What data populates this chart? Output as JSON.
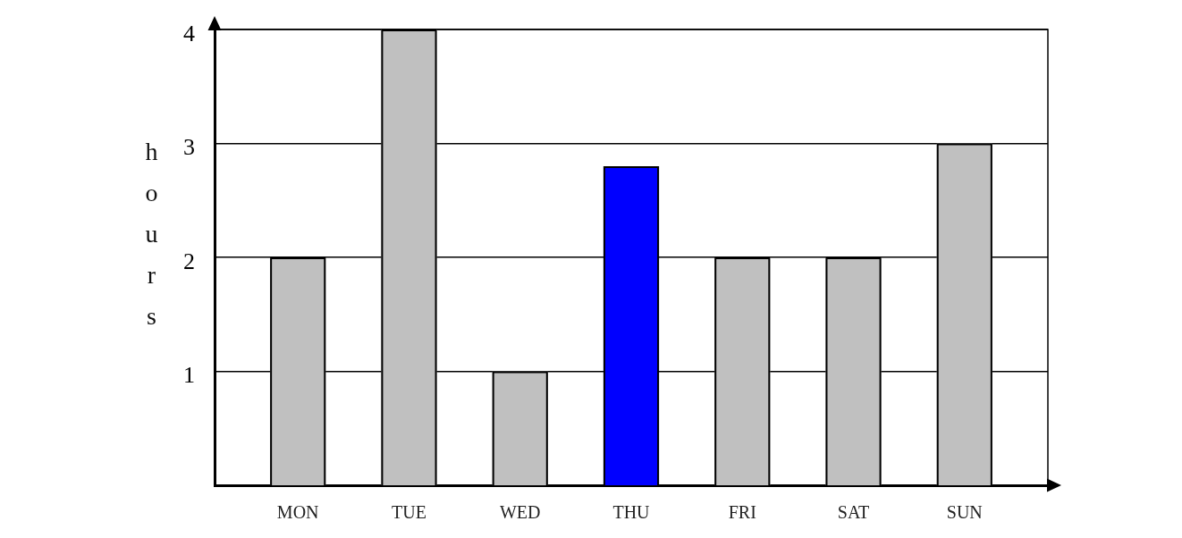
{
  "chart_data": {
    "type": "bar",
    "categories": [
      "MON",
      "TUE",
      "WED",
      "THU",
      "FRI",
      "SAT",
      "SUN"
    ],
    "values": [
      2,
      4,
      1,
      2.8,
      2,
      2,
      3
    ],
    "colors": [
      "#c0c0c0",
      "#c0c0c0",
      "#c0c0c0",
      "#0000ff",
      "#c0c0c0",
      "#c0c0c0",
      "#c0c0c0"
    ],
    "ylabel": "hours",
    "ylim": [
      0,
      4
    ],
    "yticks": [
      1,
      2,
      3,
      4
    ],
    "grid": "y"
  }
}
